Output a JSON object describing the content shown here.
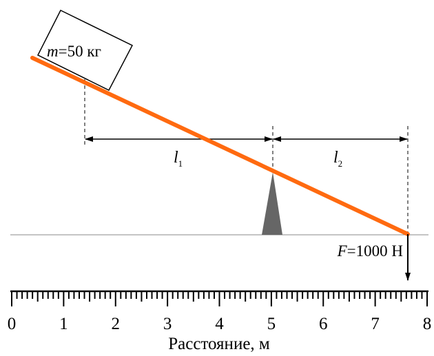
{
  "mass_label": {
    "symbol": "m",
    "text": "=50 кг"
  },
  "arm1": {
    "symbol": "l",
    "subscript": "1"
  },
  "arm2": {
    "symbol": "l",
    "subscript": "2"
  },
  "force_label": {
    "symbol": "F",
    "text": "=1000 Н"
  },
  "ruler": {
    "ticks": [
      0,
      1,
      2,
      3,
      4,
      5,
      6,
      7,
      8
    ],
    "label": "Расстояние, м"
  }
}
